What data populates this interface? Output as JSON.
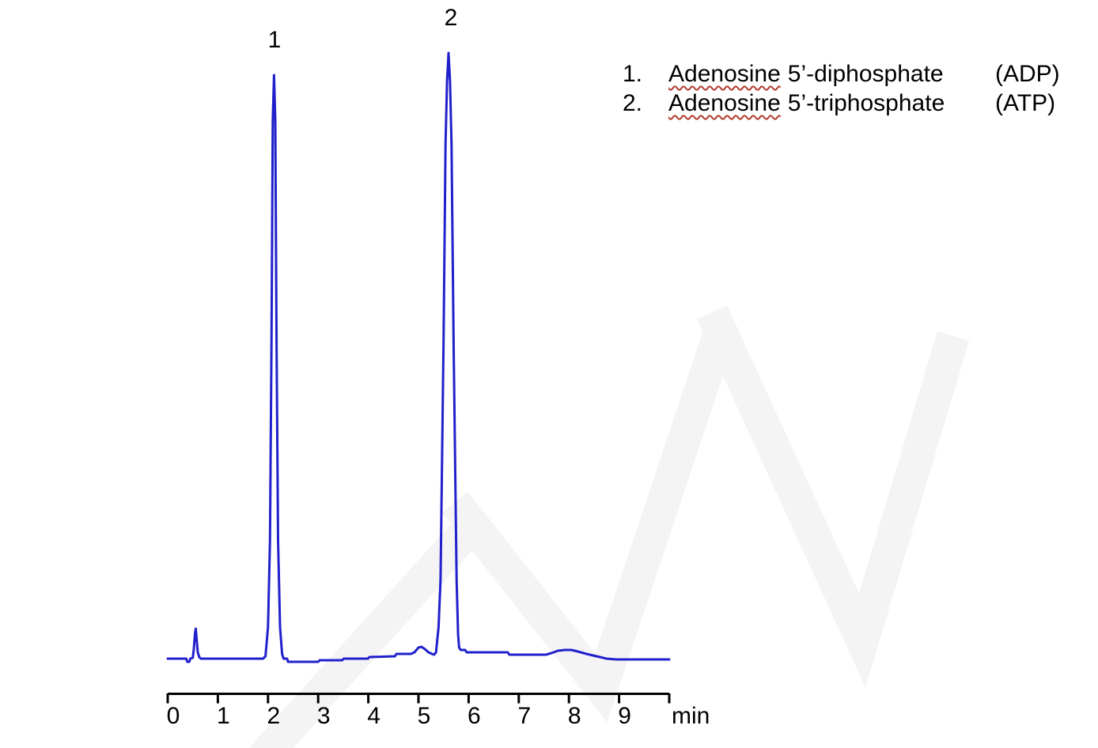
{
  "figure": {
    "description": "HPLC chromatogram of adenosine nucleotides, detector response vs retention time"
  },
  "legend": {
    "items": [
      {
        "num": "1.",
        "word": "Adenosine",
        "rest": "5’-diphosphate",
        "abbr": "(ADP)"
      },
      {
        "num": "2.",
        "word": "Adenosine",
        "rest": "5’-triphosphate",
        "abbr": "(ATP)"
      }
    ]
  },
  "x_axis": {
    "unit_label": "min",
    "tick_labels": [
      "0",
      "1",
      "2",
      "3",
      "4",
      "5",
      "6",
      "7",
      "8",
      "9"
    ]
  },
  "colors": {
    "trace": "#2020cc",
    "axis": "#000000",
    "text": "#000000",
    "spellcheck_underline": "#b23b2e",
    "watermark": "#f4f4f4"
  },
  "chart_data": {
    "type": "line",
    "title": "",
    "xlabel": "min",
    "ylabel": "",
    "x_range": [
      0,
      10
    ],
    "x_ticks": [
      0,
      1,
      2,
      3,
      4,
      5,
      6,
      7,
      8,
      9,
      10
    ],
    "grid": false,
    "legend_position": "top-right",
    "peaks": [
      {
        "label": "1",
        "compound": "Adenosine 5’-diphosphate",
        "abbreviation": "ADP",
        "retention_time_min": 2.1,
        "rel_height": 738
      },
      {
        "label": "2",
        "compound": "Adenosine 5’-triphosphate",
        "abbreviation": "ATP",
        "retention_time_min": 5.6,
        "rel_height": 766
      }
    ],
    "trace_t_h": [
      [
        0,
        0
      ],
      [
        0.37,
        0
      ],
      [
        0.39,
        -4
      ],
      [
        0.43,
        -4
      ],
      [
        0.45,
        0
      ],
      [
        0.5,
        1
      ],
      [
        0.52,
        12
      ],
      [
        0.545,
        33
      ],
      [
        0.56,
        38
      ],
      [
        0.58,
        22
      ],
      [
        0.6,
        8
      ],
      [
        0.63,
        2
      ],
      [
        0.66,
        0
      ],
      [
        1.9,
        0
      ],
      [
        1.95,
        3
      ],
      [
        2.0,
        40
      ],
      [
        2.04,
        150
      ],
      [
        2.07,
        400
      ],
      [
        2.095,
        680
      ],
      [
        2.12,
        738
      ],
      [
        2.145,
        680
      ],
      [
        2.17,
        400
      ],
      [
        2.2,
        150
      ],
      [
        2.24,
        40
      ],
      [
        2.28,
        6
      ],
      [
        2.31,
        0
      ],
      [
        2.38,
        0
      ],
      [
        2.4,
        -4
      ],
      [
        3.0,
        -4
      ],
      [
        3.03,
        -2
      ],
      [
        3.48,
        -2
      ],
      [
        3.51,
        0
      ],
      [
        3.99,
        0
      ],
      [
        4.02,
        2
      ],
      [
        4.53,
        3
      ],
      [
        4.56,
        6
      ],
      [
        4.85,
        6
      ],
      [
        4.92,
        8
      ],
      [
        5.0,
        14
      ],
      [
        5.06,
        15
      ],
      [
        5.13,
        12
      ],
      [
        5.2,
        8
      ],
      [
        5.27,
        6
      ],
      [
        5.31,
        5
      ],
      [
        5.35,
        8
      ],
      [
        5.4,
        40
      ],
      [
        5.44,
        100
      ],
      [
        5.5,
        400
      ],
      [
        5.54,
        650
      ],
      [
        5.57,
        730
      ],
      [
        5.6,
        766
      ],
      [
        5.63,
        730
      ],
      [
        5.66,
        650
      ],
      [
        5.7,
        400
      ],
      [
        5.76,
        100
      ],
      [
        5.79,
        30
      ],
      [
        5.81,
        14
      ],
      [
        5.84,
        11
      ],
      [
        5.93,
        11
      ],
      [
        5.96,
        8
      ],
      [
        6.78,
        8
      ],
      [
        6.81,
        5
      ],
      [
        7.54,
        5
      ],
      [
        7.65,
        7
      ],
      [
        7.78,
        10
      ],
      [
        7.92,
        11
      ],
      [
        8.05,
        11
      ],
      [
        8.18,
        9
      ],
      [
        8.35,
        6
      ],
      [
        8.55,
        3
      ],
      [
        8.75,
        0
      ],
      [
        8.95,
        -1
      ],
      [
        10.0,
        -1
      ]
    ]
  }
}
